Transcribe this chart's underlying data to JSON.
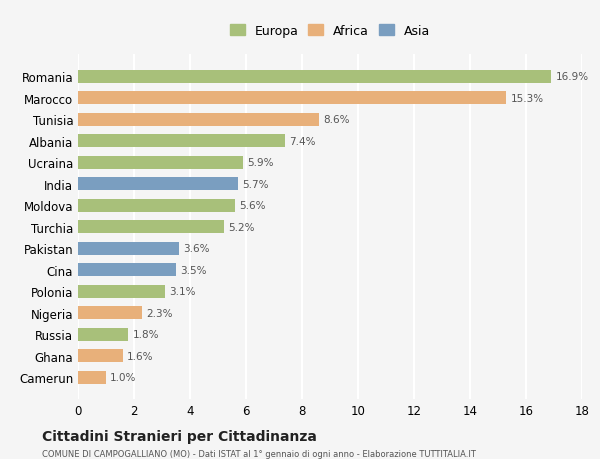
{
  "countries": [
    "Romania",
    "Marocco",
    "Tunisia",
    "Albania",
    "Ucraina",
    "India",
    "Moldova",
    "Turchia",
    "Pakistan",
    "Cina",
    "Polonia",
    "Nigeria",
    "Russia",
    "Ghana",
    "Camerun"
  ],
  "values": [
    16.9,
    15.3,
    8.6,
    7.4,
    5.9,
    5.7,
    5.6,
    5.2,
    3.6,
    3.5,
    3.1,
    2.3,
    1.8,
    1.6,
    1.0
  ],
  "continents": [
    "Europa",
    "Africa",
    "Africa",
    "Europa",
    "Europa",
    "Asia",
    "Europa",
    "Europa",
    "Asia",
    "Asia",
    "Europa",
    "Africa",
    "Europa",
    "Africa",
    "Africa"
  ],
  "colors": {
    "Europa": "#a8c07a",
    "Africa": "#e8b07a",
    "Asia": "#7a9ec0"
  },
  "xlim": [
    0,
    18
  ],
  "xticks": [
    0,
    2,
    4,
    6,
    8,
    10,
    12,
    14,
    16,
    18
  ],
  "title": "Cittadini Stranieri per Cittadinanza",
  "subtitle": "COMUNE DI CAMPOGALLIANO (MO) - Dati ISTAT al 1° gennaio di ogni anno - Elaborazione TUTTITALIA.IT",
  "background_color": "#f5f5f5",
  "grid_color": "#ffffff",
  "bar_height": 0.6
}
